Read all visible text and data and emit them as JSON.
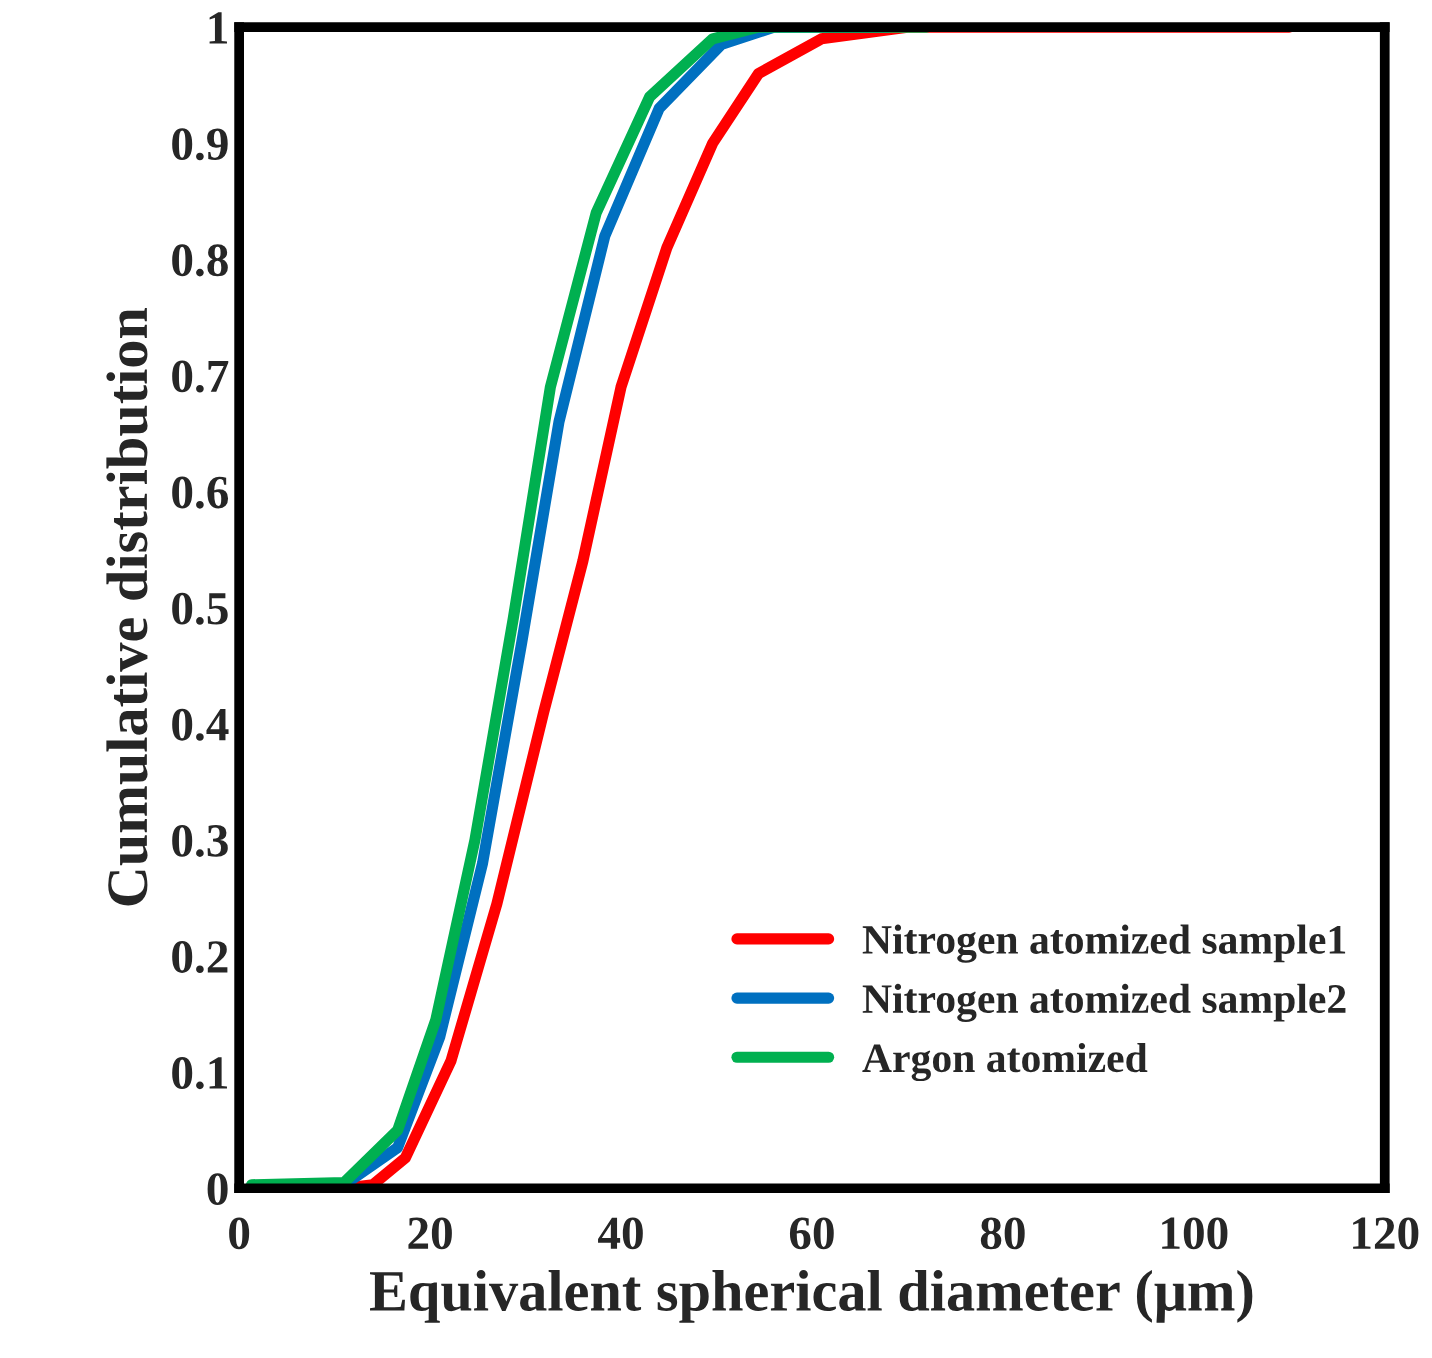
{
  "chart_data": {
    "type": "line",
    "xlabel": "Equivalent spherical diameter (μm)",
    "ylabel": "Cumulative distribution",
    "xlim": [
      0,
      120
    ],
    "xticks": [
      0,
      20,
      40,
      60,
      80,
      100,
      120
    ],
    "ylim": [
      0,
      1
    ],
    "yticks": [
      0,
      0.1,
      0.2,
      0.3,
      0.4,
      0.5,
      0.6,
      0.7,
      0.8,
      0.9,
      1
    ],
    "grid": false,
    "legend": "bottom right",
    "marker": "none",
    "line_style": "solid",
    "series": [
      {
        "name": "Nitrogen atomized sample1",
        "color": "#ff0000",
        "x": [
          11,
          14,
          17.4,
          22.2,
          27,
          31.9,
          36,
          40,
          44.8,
          49.6,
          54.4,
          61,
          70,
          110
        ],
        "values": [
          0,
          0.003,
          0.026,
          0.11,
          0.245,
          0.41,
          0.54,
          0.69,
          0.81,
          0.9,
          0.96,
          0.99,
          1,
          1
        ]
      },
      {
        "name": "Nitrogen atomized sample2",
        "color": "#0070c0",
        "x": [
          1.3,
          11,
          16.6,
          21,
          25.5,
          29.6,
          33.5,
          38.3,
          44,
          50.5,
          56,
          68
        ],
        "values": [
          0.002,
          0.003,
          0.035,
          0.13,
          0.28,
          0.47,
          0.66,
          0.82,
          0.93,
          0.985,
          1,
          1
        ]
      },
      {
        "name": "Argon atomized",
        "color": "#00b050",
        "x": [
          1.3,
          11,
          16.6,
          20.6,
          24.7,
          28.7,
          32.6,
          37.4,
          43,
          49.6,
          54.4,
          72
        ],
        "values": [
          0.003,
          0.005,
          0.05,
          0.145,
          0.3,
          0.49,
          0.69,
          0.84,
          0.94,
          0.99,
          1,
          1
        ]
      }
    ]
  }
}
